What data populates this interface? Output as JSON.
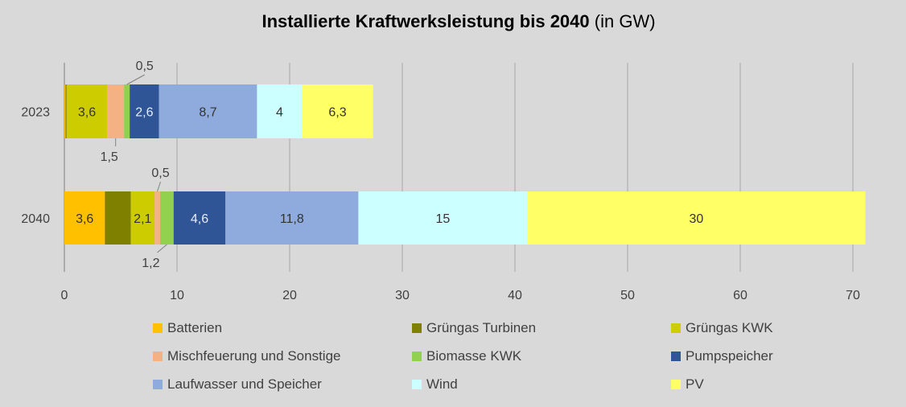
{
  "chart_data": {
    "type": "bar",
    "orientation": "horizontal",
    "stacked": true,
    "title": "Installierte Kraftwerksleistung bis 2040",
    "title_suffix": "(in GW)",
    "categories": [
      "2023",
      "2040"
    ],
    "xlim": [
      0,
      71.4
    ],
    "xticks": [
      0,
      10,
      20,
      30,
      40,
      50,
      60,
      70
    ],
    "grid": true,
    "legend_position": "bottom",
    "series": [
      {
        "name": "Batterien",
        "color": "#FFC000",
        "values": [
          0.1,
          3.6
        ],
        "labels": [
          "",
          "3,6"
        ]
      },
      {
        "name": "Grüngas Turbinen",
        "color": "#7F7F00",
        "values": [
          0.1,
          2.3
        ],
        "labels": [
          "",
          ""
        ]
      },
      {
        "name": "Grüngas KWK",
        "color": "#CCCC00",
        "values": [
          3.6,
          2.1
        ],
        "labels": [
          "3,6",
          "2,1"
        ]
      },
      {
        "name": "Mischfeuerung und Sonstige",
        "color": "#F4B183",
        "values": [
          1.5,
          0.5
        ],
        "labels": [
          "1,5",
          "0,5"
        ]
      },
      {
        "name": "Biomasse KWK",
        "color": "#92D050",
        "values": [
          0.5,
          1.2
        ],
        "labels": [
          "0,5",
          "1,2"
        ]
      },
      {
        "name": "Pumpspeicher",
        "color": "#2F5597",
        "values": [
          2.6,
          4.6
        ],
        "labels": [
          "2,6",
          "4,6"
        ]
      },
      {
        "name": "Laufwasser und Speicher",
        "color": "#8FAADC",
        "values": [
          8.7,
          11.8
        ],
        "labels": [
          "8,7",
          "11,8"
        ]
      },
      {
        "name": "Wind",
        "color": "#CCFFFF",
        "values": [
          4,
          15
        ],
        "labels": [
          "4",
          "15"
        ]
      },
      {
        "name": "PV",
        "color": "#FFFF66",
        "values": [
          6.3,
          30
        ],
        "labels": [
          "6,3",
          "30"
        ]
      }
    ]
  }
}
